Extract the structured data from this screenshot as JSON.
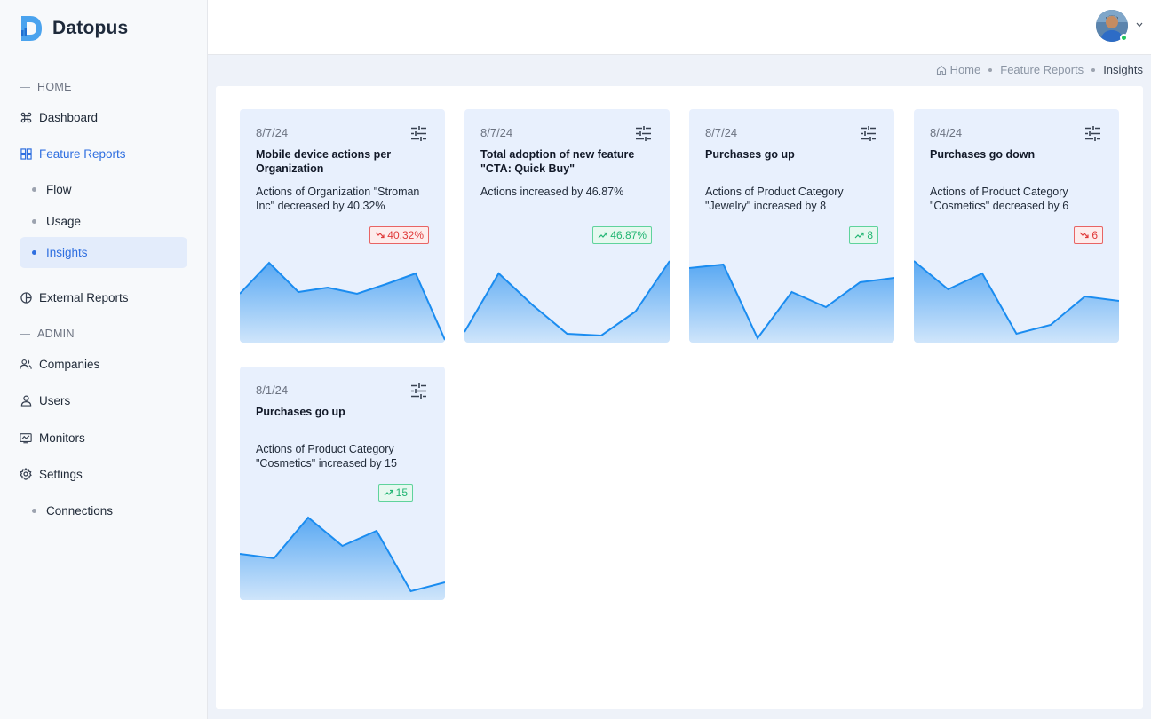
{
  "app": {
    "name": "Datopus"
  },
  "sidebar": {
    "sections": {
      "home": "HOME",
      "admin": "ADMIN"
    },
    "dashboard": "Dashboard",
    "feature_reports": "Feature Reports",
    "sub": {
      "flow": "Flow",
      "usage": "Usage",
      "insights": "Insights"
    },
    "external_reports": "External Reports",
    "companies": "Companies",
    "users": "Users",
    "monitors": "Monitors",
    "settings": "Settings",
    "connections": "Connections"
  },
  "breadcrumb": {
    "home": "Home",
    "feature_reports": "Feature Reports",
    "current": "Insights"
  },
  "colors": {
    "accent": "#2f6fe0",
    "up": "#22b573",
    "down": "#e03b3b",
    "line": "#1a8cf0"
  },
  "cards": [
    {
      "date": "8/7/24",
      "title": "Mobile device actions per Organization",
      "desc": "Actions of Organization \"Stroman Inc\" decreased by 40.32%",
      "badge": "40.32%",
      "trend": "down",
      "series": [
        55,
        90,
        57,
        62,
        55,
        66,
        78,
        3
      ]
    },
    {
      "date": "8/7/24",
      "title": "Total adoption of new feature \"CTA: Quick Buy\"",
      "desc": "Actions increased by 46.87%",
      "badge": "46.87%",
      "trend": "up",
      "series": [
        12,
        78,
        42,
        10,
        8,
        35,
        92
      ]
    },
    {
      "date": "8/7/24",
      "title": "Purchases go up",
      "desc": "Actions of Product Category \"Jewelry\" increased by 8",
      "badge": "8",
      "trend": "up",
      "series": [
        84,
        88,
        5,
        57,
        40,
        68,
        73
      ]
    },
    {
      "date": "8/4/24",
      "title": "Purchases go down",
      "desc": "Actions of Product Category \"Cosmetics\" decreased by 6",
      "badge": "6",
      "trend": "down",
      "series": [
        92,
        60,
        78,
        10,
        20,
        52,
        47
      ]
    },
    {
      "date": "8/1/24",
      "title": "Purchases go up",
      "desc": "Actions of Product Category \"Cosmetics\" increased by 15",
      "badge": "15",
      "trend": "up",
      "series": [
        52,
        47,
        93,
        61,
        78,
        10,
        20
      ]
    }
  ]
}
